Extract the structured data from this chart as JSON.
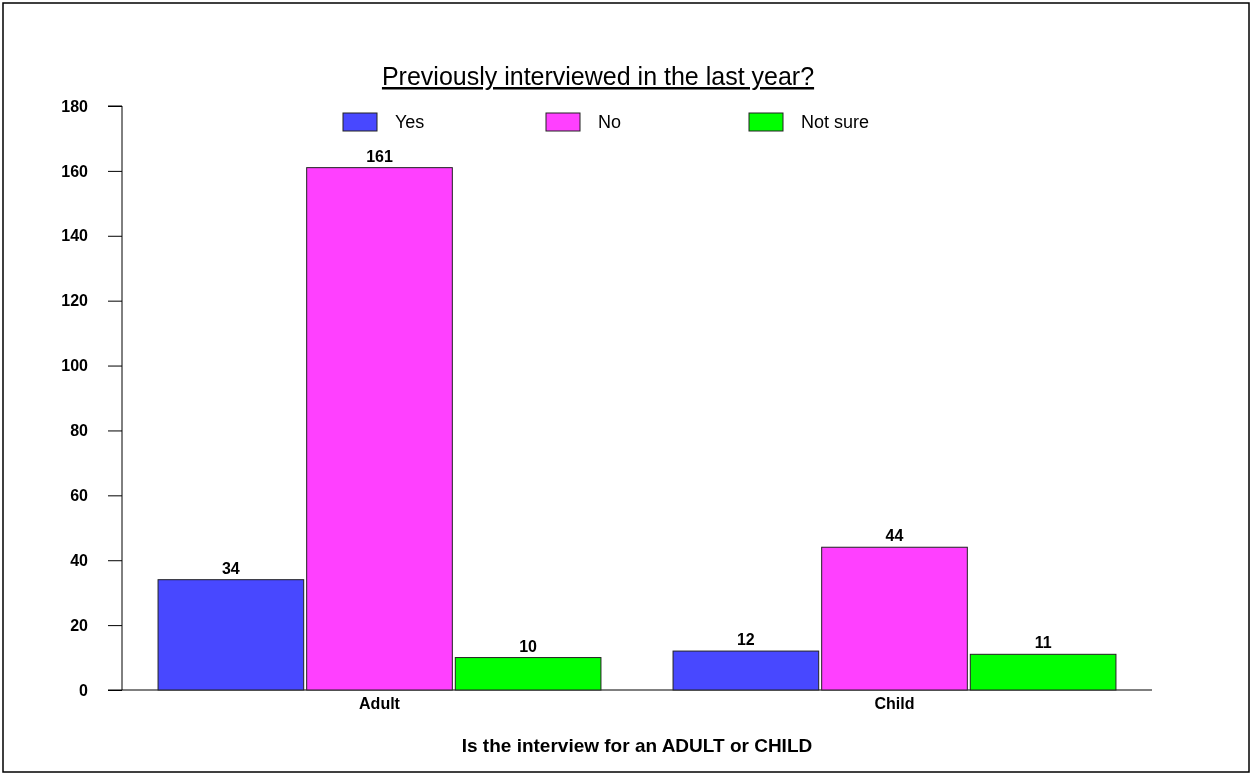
{
  "chart_data": {
    "type": "bar",
    "title": "Previously interviewed in the last year?",
    "xlabel": "Is the interview for an ADULT or CHILD",
    "categories": [
      "Adult",
      "Child"
    ],
    "series": [
      {
        "name": "Yes",
        "color": "#4848ff",
        "values": [
          34,
          12
        ]
      },
      {
        "name": "No",
        "color": "#ff40ff",
        "values": [
          161,
          44
        ]
      },
      {
        "name": "Not sure",
        "color": "#00ff00",
        "values": [
          10,
          11
        ]
      }
    ],
    "ylim": [
      0,
      180
    ],
    "yticks": [
      0,
      20,
      40,
      60,
      80,
      100,
      120,
      140,
      160,
      180
    ],
    "data_labels": true,
    "legend": "top",
    "grid": false
  }
}
